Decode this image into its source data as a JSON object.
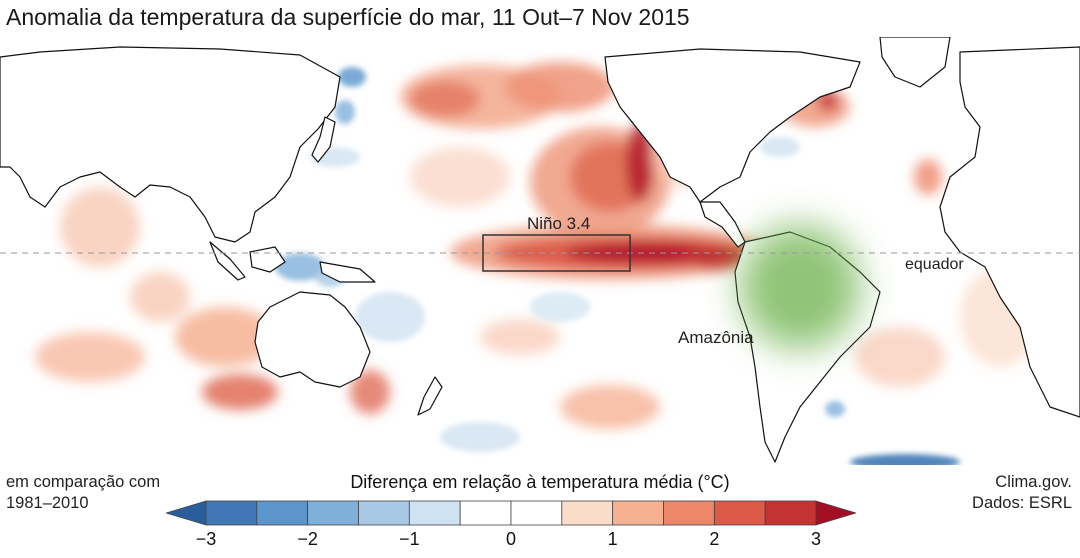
{
  "title": "Anomalia da temperatura da superfície do mar, 11 Out–7 Nov 2015",
  "map": {
    "labels": {
      "nino_box": "Niño 3.4",
      "equator": "equador",
      "amazon": "Amazônia"
    },
    "colors": {
      "warm_strong": "#b3192b",
      "warm_mid": "#e06c55",
      "warm_light": "#f8c9b4",
      "cool_mid": "#5b95cc",
      "cool_light": "#c7dcef",
      "amazon_green": "#6bb04a",
      "land_outline": "#111111",
      "equator_line": "#9a9a9a"
    }
  },
  "legend": {
    "comparison_label": "em comparação com",
    "comparison_period": "1981–2010",
    "scale_title": "Diferença em relação à temperatura média (°C)",
    "ticks": [
      "−3",
      "−2",
      "−1",
      "0",
      "1",
      "2",
      "3"
    ],
    "tick_values": [
      -3,
      -2,
      -1,
      0,
      1,
      2,
      3
    ],
    "bins": [
      {
        "from": -3.0,
        "to": -2.5,
        "color": "#3f78b4"
      },
      {
        "from": -2.5,
        "to": -2.0,
        "color": "#5b95cc"
      },
      {
        "from": -2.0,
        "to": -1.5,
        "color": "#7fb0db"
      },
      {
        "from": -1.5,
        "to": -1.0,
        "color": "#a7c9e6"
      },
      {
        "from": -1.0,
        "to": -0.5,
        "color": "#cfe2f1"
      },
      {
        "from": -0.5,
        "to": 0.0,
        "color": "#ffffff"
      },
      {
        "from": 0.0,
        "to": 0.5,
        "color": "#ffffff"
      },
      {
        "from": 0.5,
        "to": 1.0,
        "color": "#fbdcc9"
      },
      {
        "from": 1.0,
        "to": 1.5,
        "color": "#f6b193"
      },
      {
        "from": 1.5,
        "to": 2.0,
        "color": "#ec8769"
      },
      {
        "from": 2.0,
        "to": 2.5,
        "color": "#dc5b48"
      },
      {
        "from": 2.5,
        "to": 3.0,
        "color": "#c33433"
      }
    ],
    "end_low_color": "#2a5d9a",
    "end_high_color": "#a50f24"
  },
  "credits": {
    "source": "Clima.gov.",
    "data": "Dados: ESRL"
  }
}
